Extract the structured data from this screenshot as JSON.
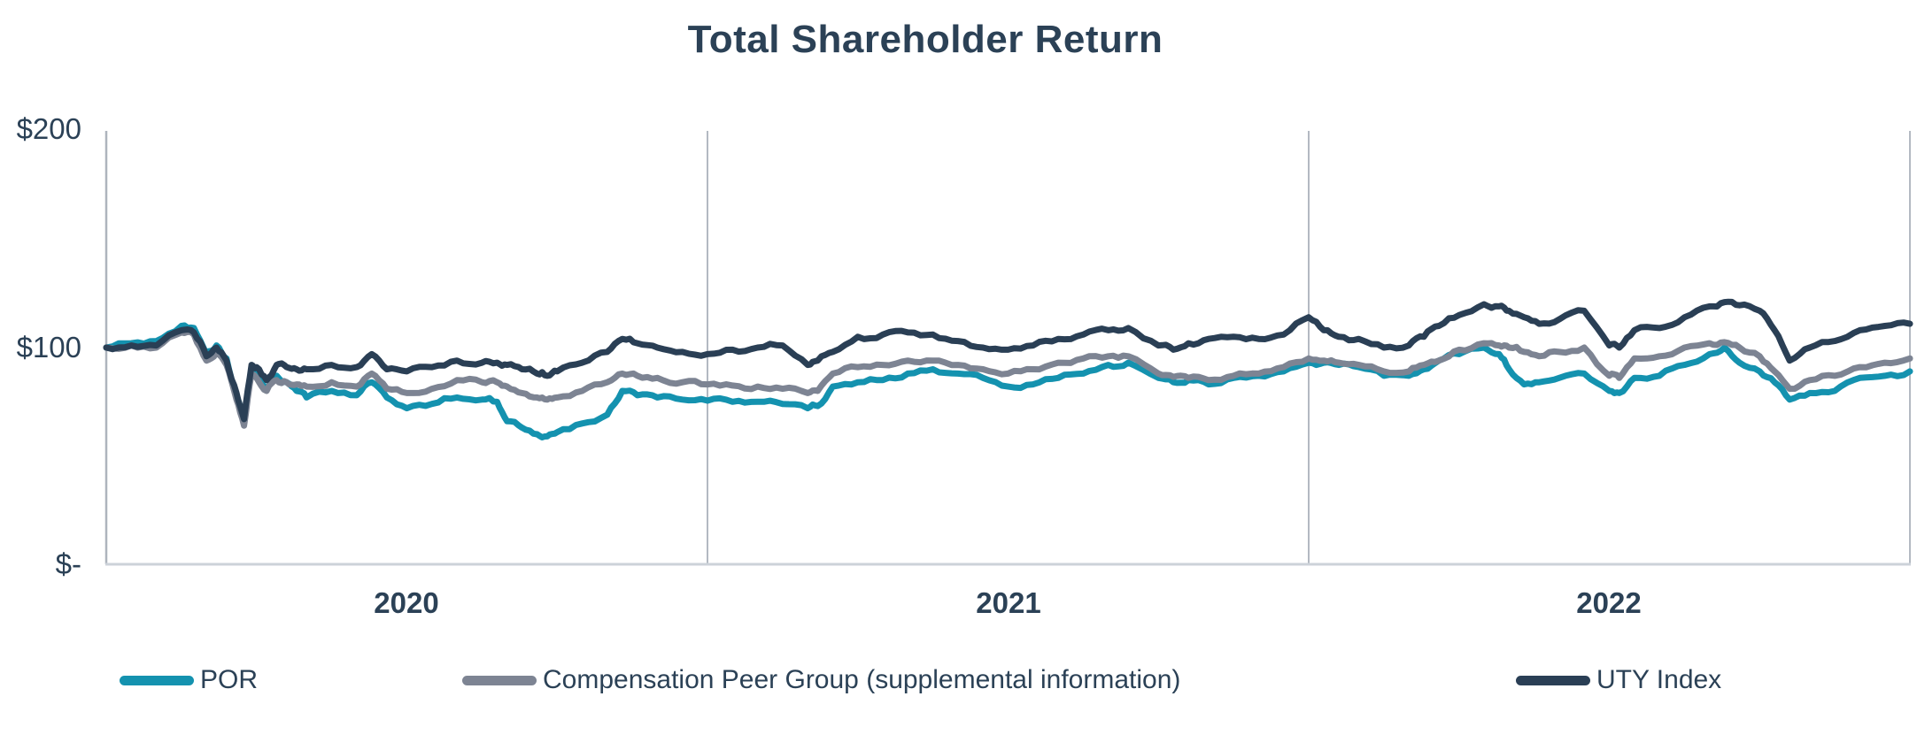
{
  "chart_data": {
    "type": "line",
    "title": "Total Shareholder Return",
    "x_unit": "months from start of period (0 = value indexed to $100)",
    "x_range": [
      0,
      36
    ],
    "ylim": [
      0,
      200
    ],
    "grid": "vertical year boundaries only",
    "legend_position": "bottom",
    "y_ticks": [
      {
        "label": "$200",
        "value": 200
      },
      {
        "label": "$100",
        "value": 100
      },
      {
        "label": "$-",
        "value": 0
      }
    ],
    "x_ticks": [
      {
        "label": "2020",
        "months_center": 6
      },
      {
        "label": "2021",
        "months_center": 18
      },
      {
        "label": "2022",
        "months_center": 30
      }
    ],
    "year_gridlines_months": [
      12,
      24,
      36
    ],
    "colors": {
      "por": "#1492AF",
      "peer_group": "#7D8493",
      "uty_index": "#2A3F55",
      "text": "#2B4156",
      "gridline": "#b3b9c2",
      "axis": "#aeb4bd",
      "baseline": "#ccd2d9"
    },
    "x": [
      0,
      0.5,
      1,
      1.5,
      1.75,
      2,
      2.2,
      2.4,
      2.6,
      2.75,
      2.9,
      3,
      3.2,
      3.4,
      3.6,
      3.8,
      4,
      4.5,
      5,
      5.3,
      5.6,
      6,
      6.5,
      7,
      7.5,
      7.8,
      8,
      8.3,
      8.6,
      8.8,
      9,
      9.5,
      10,
      10.3,
      10.6,
      11,
      11.5,
      12,
      12.5,
      13,
      13.5,
      14,
      14.2,
      14.5,
      15,
      15.5,
      16,
      16.5,
      17,
      17.5,
      18,
      18.5,
      19,
      19.5,
      20,
      20.4,
      21,
      21.3,
      21.6,
      22,
      22.5,
      23,
      23.5,
      24,
      24.3,
      24.6,
      25,
      25.5,
      26,
      26.3,
      26.6,
      27,
      27.5,
      27.8,
      28,
      28.3,
      28.6,
      29,
      29.5,
      30,
      30.2,
      30.5,
      31,
      31.5,
      32,
      32.3,
      32.6,
      33,
      33.3,
      33.6,
      34,
      34.5,
      35,
      35.5,
      36
    ],
    "series": [
      {
        "name": "POR",
        "color": "#1492AF",
        "values": [
          100,
          102,
          103,
          110,
          109,
          97,
          101,
          95,
          78,
          66,
          90,
          88,
          81,
          87,
          84,
          80,
          77,
          80,
          78,
          84,
          77,
          72,
          74,
          77,
          76,
          75,
          66,
          63,
          60,
          59,
          61,
          65,
          69,
          80,
          78,
          77,
          76,
          75.5,
          75,
          75,
          74,
          72,
          73,
          82,
          84,
          85,
          88,
          90,
          88,
          86,
          82,
          83,
          86,
          88,
          92,
          93,
          86,
          84,
          85,
          83,
          86,
          87,
          89,
          93,
          93,
          92,
          91,
          87,
          87,
          90,
          94,
          97,
          100,
          97,
          90,
          83,
          84,
          86,
          88,
          80,
          79,
          86,
          87,
          92,
          97,
          100,
          93,
          89,
          84,
          76,
          79,
          80,
          86,
          87,
          89
        ]
      },
      {
        "name": "Compensation Peer Group (supplemental information)",
        "color": "#7D8493",
        "values": [
          100,
          101,
          100,
          107,
          106,
          94,
          98,
          92,
          76,
          64,
          88,
          86,
          80,
          85,
          84,
          83,
          82,
          84,
          82,
          88,
          81,
          79,
          81,
          85,
          84,
          84,
          82,
          79,
          77,
          76,
          77,
          80,
          84,
          88,
          87,
          86,
          84,
          83,
          82.5,
          82,
          81,
          79,
          80,
          88,
          91,
          92,
          94,
          94,
          92,
          90,
          88,
          90,
          93,
          95,
          96,
          96,
          88,
          86.5,
          86,
          85,
          87,
          88,
          91,
          95,
          94,
          93,
          92,
          89,
          89,
          92,
          94,
          99,
          102,
          101,
          100,
          98,
          96,
          98,
          100,
          87,
          86,
          95,
          96,
          100,
          102,
          102.5,
          100,
          96,
          89,
          81,
          85,
          87,
          91,
          93,
          95
        ]
      },
      {
        "name": "UTY Index",
        "color": "#2A3F55",
        "values": [
          100,
          101,
          101,
          108,
          107,
          96,
          100,
          94,
          79,
          67,
          92,
          91,
          85,
          92,
          91,
          90,
          90,
          92,
          91,
          97,
          90,
          89,
          91,
          94,
          93,
          93,
          92,
          90,
          88,
          87,
          89,
          93,
          98,
          104,
          102,
          100,
          98,
          97,
          99,
          100,
          101,
          92,
          94,
          98,
          105,
          106,
          107,
          106,
          103,
          100,
          99,
          101,
          104,
          106,
          108,
          109,
          101,
          99,
          102,
          104,
          105,
          104,
          106,
          114,
          108,
          105,
          104,
          100,
          101,
          105,
          110,
          115,
          120,
          119,
          117,
          114,
          111,
          113,
          117,
          101,
          100,
          108,
          109,
          114,
          119,
          121,
          119.5,
          117,
          108,
          94,
          100,
          103,
          108,
          110,
          111
        ]
      }
    ]
  }
}
